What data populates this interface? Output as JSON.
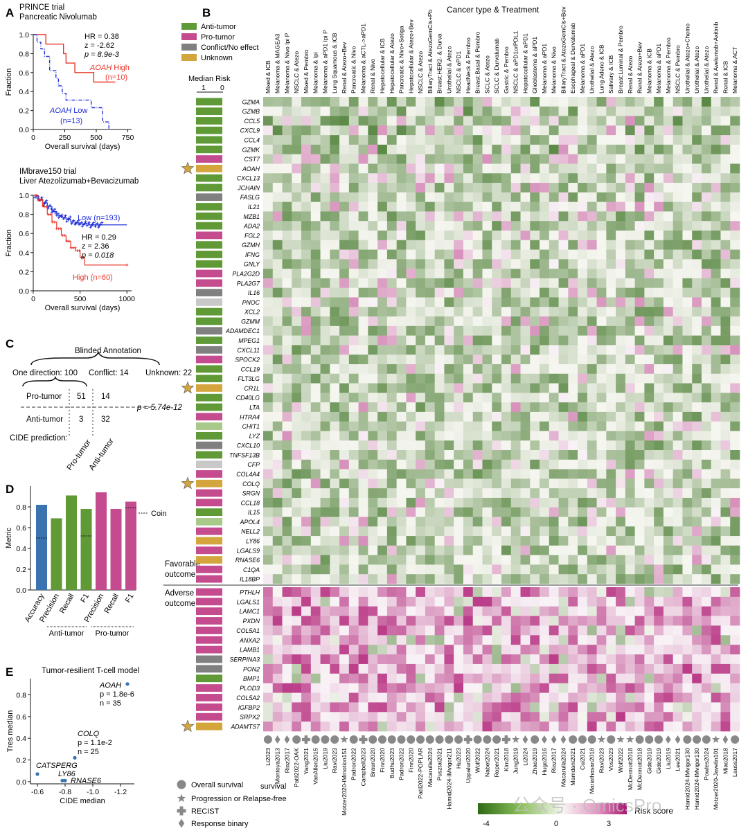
{
  "panels": {
    "A": {
      "letter": "A",
      "km1": {
        "title_line1": "PRINCE trial",
        "title_line2": "Pancreatic Nivolumab",
        "ylabel": "Fraction",
        "xlabel": "Overall survival (days)",
        "xticks": [
          "0",
          "250",
          "500",
          "750"
        ],
        "yticks": [
          "0.0",
          "0.2",
          "0.4",
          "0.6",
          "0.8",
          "1.0"
        ],
        "stats": [
          "HR = 0.38",
          "z = -2.62",
          "p = 8.9e-3"
        ],
        "high_label_gene": "AOAH",
        "high_label_rest": " High",
        "high_n": "(n=10)",
        "low_label_gene": "AOAH",
        "low_label_rest": " Low",
        "low_n": "(n=13)",
        "high_color": "#e8362a",
        "low_color": "#1f2fd6"
      },
      "km2": {
        "title_line1": "IMbrave150 trial",
        "title_line2": "Liver Atezolizumab+Bevacizumab",
        "ylabel": "Fraction",
        "xlabel": "Overall survival (days)",
        "xticks": [
          "0",
          "500",
          "1000"
        ],
        "yticks": [
          "0.0",
          "0.2",
          "0.4",
          "0.6",
          "0.8",
          "1.0"
        ],
        "stats": [
          "HR = 0.29",
          "z = 2.36",
          "p = 0.018"
        ],
        "low_label": "Low (n=193)",
        "high_label": "High (n=60)"
      }
    },
    "C": {
      "letter": "C",
      "title": "Blinded Annotation",
      "one_direction": "One direction: 100",
      "conflict": "Conflict: 14",
      "unknown": "Unknown: 22",
      "row1": "Pro-tumor",
      "row2": "Anti-tumor",
      "cells": [
        "51",
        "14",
        "3",
        "32"
      ],
      "pvalue": "p = 5.74e-12",
      "prediction_label": "CIDE prediction:",
      "col1": "Pro-tumor",
      "col2": "Anti-tumor"
    },
    "D": {
      "letter": "D",
      "ylabel": "Metric",
      "coin_label": "Coin",
      "group1": "Anti-tumor",
      "group2": "Pro-tumor"
    },
    "E": {
      "letter": "E",
      "title": "Tumor-resilient T-cell model",
      "ylabel": "Tres median",
      "xlabel": "CIDE median",
      "xticks": [
        "-0.6",
        "-0.8",
        "-1.0",
        "-1.2"
      ],
      "yticks": [
        "0.0",
        "0.2",
        "0.4",
        "0.6",
        "0.8"
      ],
      "aoah_label": "AOAH",
      "aoah_p": "p = 1.8e-6",
      "aoah_n": "n = 35",
      "colq_label": "COLQ",
      "colq_p": "p = 1.1e-2",
      "colq_n": "n = 25",
      "catsperg_label": "CATSPERG",
      "ly86_label": "LY86",
      "rnase6_label": "RNASE6"
    },
    "B": {
      "letter": "B",
      "top_title": "Cancer type & Treatment",
      "median_risk": "Median Risk",
      "median_ticks": [
        "1",
        "0"
      ],
      "favorable": [
        "Favorable",
        "outcome"
      ],
      "adverse": [
        "Adverse",
        "outcome"
      ],
      "legend_title": "Risk score",
      "legend_ticks": [
        "-4",
        "0",
        "3"
      ],
      "endpoint_legend": [
        {
          "shape": "circle",
          "label": "Overall survival"
        },
        {
          "shape": "star",
          "label": "Progression or Relapse-free"
        },
        {
          "shape": "plus",
          "label": "RECIST"
        },
        {
          "shape": "diamond",
          "label": "Response binary"
        }
      ],
      "endpoint_legend_extra": "survival",
      "watermark": "公众号 · OmicsPro"
    }
  },
  "annotation_legend": [
    {
      "label": "Anti-tumor",
      "color": "#5f9a37"
    },
    {
      "label": "Pro-tumor",
      "color": "#c44b8e"
    },
    {
      "label": "Conflict/No effect",
      "color": "#808080"
    },
    {
      "label": "Unknown",
      "color": "#d4a53c"
    }
  ],
  "chart_data": [
    {
      "type": "line",
      "title": "PRINCE trial Pancreatic Nivolumab",
      "xlabel": "Overall survival (days)",
      "ylabel": "Fraction",
      "xlim": [
        0,
        750
      ],
      "ylim": [
        0,
        1.0
      ],
      "series": [
        {
          "name": "AOAH High (n=10)",
          "x": [
            0,
            40,
            100,
            240,
            260,
            330,
            420,
            480,
            560,
            620,
            650
          ],
          "y": [
            1.0,
            1.0,
            0.9,
            0.8,
            0.7,
            0.6,
            0.6,
            0.5,
            0.5,
            0.5,
            0.5
          ]
        },
        {
          "name": "AOAH Low (n=13)",
          "x": [
            0,
            30,
            60,
            90,
            130,
            180,
            200,
            230,
            260,
            320,
            400,
            460,
            550,
            600
          ],
          "y": [
            1.0,
            0.92,
            0.85,
            0.77,
            0.62,
            0.54,
            0.46,
            0.38,
            0.31,
            0.31,
            0.31,
            0.23,
            0.08,
            0.0
          ]
        }
      ]
    },
    {
      "type": "line",
      "title": "IMbrave150 trial Liver Atezolizumab+Bevacizumab",
      "xlabel": "Overall survival (days)",
      "ylabel": "Fraction",
      "xlim": [
        0,
        1050
      ],
      "ylim": [
        0,
        1.0
      ],
      "series": [
        {
          "name": "Low (n=193)",
          "x": [
            0,
            50,
            100,
            150,
            200,
            250,
            300,
            350,
            400,
            450,
            500,
            600,
            700,
            800,
            900,
            1000
          ],
          "y": [
            1.0,
            0.96,
            0.92,
            0.88,
            0.83,
            0.79,
            0.77,
            0.75,
            0.72,
            0.71,
            0.7,
            0.69,
            0.69,
            0.69,
            0.69,
            0.69
          ]
        },
        {
          "name": "High (n=60)",
          "x": [
            0,
            50,
            100,
            150,
            200,
            250,
            300,
            350,
            400,
            450,
            500,
            550,
            600,
            700,
            800,
            1000
          ],
          "y": [
            1.0,
            0.95,
            0.88,
            0.8,
            0.72,
            0.65,
            0.58,
            0.52,
            0.45,
            0.42,
            0.35,
            0.27,
            0.27,
            0.27,
            0.27,
            0.27
          ]
        }
      ]
    },
    {
      "type": "bar",
      "ylabel": "Metric",
      "ylim": [
        0,
        1.0
      ],
      "categories": [
        "Accuracy",
        "Precision",
        "Recall",
        "F1",
        "Precision",
        "Recall",
        "F1"
      ],
      "values": [
        0.82,
        0.69,
        0.91,
        0.78,
        0.94,
        0.78,
        0.85
      ],
      "coin": [
        0.5,
        null,
        null,
        0.52,
        null,
        null,
        0.79
      ],
      "groups": [
        "",
        "Anti-tumor",
        "Anti-tumor",
        "Anti-tumor",
        "Pro-tumor",
        "Pro-tumor",
        "Pro-tumor"
      ],
      "colors": [
        "#3b72b0",
        "#5f9a37",
        "#5f9a37",
        "#5f9a37",
        "#c44b8e",
        "#c44b8e",
        "#c44b8e"
      ]
    },
    {
      "type": "scatter",
      "title": "Tumor-resilient T-cell model",
      "xlabel": "CIDE median",
      "ylabel": "Tres median",
      "xlim": [
        -0.55,
        -1.3
      ],
      "ylim": [
        -0.02,
        0.95
      ],
      "points": [
        {
          "label": "AOAH",
          "x": -1.25,
          "y": 0.9
        },
        {
          "label": "COLQ",
          "x": -0.87,
          "y": 0.22
        },
        {
          "label": "CATSPERG",
          "x": -0.6,
          "y": 0.07
        },
        {
          "label": "LY86",
          "x": -0.78,
          "y": 0.01
        },
        {
          "label": "RNASE6",
          "x": -0.8,
          "y": 0.01
        }
      ]
    },
    {
      "type": "heatmap",
      "title": "Cancer type & Treatment",
      "colorbar_label": "Risk score",
      "colorbar_range": [
        -4,
        3
      ],
      "columns_top": [
        "Mixed & ICB",
        "Melanoma & MAGEA3",
        "Melanoma & Nivo Ipi P",
        "NSCLC & Atezo",
        "Mixed & Pembro",
        "Melanoma & Ipi",
        "Melanoma & aPD1 Ipi P",
        "Lung Squamous & ICB",
        "Renal & Atezo+Bev",
        "Pancreatic & Nivo",
        "Melanoma & aCTL->aPD1",
        "Renal & Nivo",
        "Hepatocellular & ICB",
        "Hepatocellular & Atezo",
        "Pancreatic & Nivo+Sotiga",
        "Hepatocellular & Atezo+Bev",
        "NSCLC & Atezo",
        "BiliaryTract & AtezoGemCis+Pb",
        "Breast:HER2- & Durva",
        "Urothelial & Atezo",
        "NSCLC & aPD1",
        "HeadNeck & Pembro",
        "Breast:Basal & Pembro",
        "SCLC & Atezo",
        "SCLC & Durvalumab",
        "Gastric & Pembro",
        "NSCLC & aPD1orPDL1",
        "Hepatocellular & aPD1",
        "Glioblastoma & aPD1",
        "Melanoma & aPD1",
        "Melanoma & Nivo",
        "BiliaryTract & AtezoGemCis+Bev",
        "Esophageal & Durvalumab",
        "Melanoma & aPD1",
        "Urothelial & Atezo",
        "Lung Adeno & ICB",
        "Salivary & ICB",
        "Breast:Luminal & Pembro",
        "Renal & Atezo",
        "Renal & Atezo+Bev",
        "Melanoma & ICB",
        "Melanoma & aPD1",
        "Melanoma & Pembro",
        "NSCLC & Pembro",
        "Urothelial & Atezo+Chemo",
        "Urothelial & Atezo",
        "Urothelial & Atezo",
        "Renal & Avelumab+Axitinib",
        "Renal & ICB",
        "Melanoma & ACT"
      ],
      "columns_bottom": [
        "Li2023",
        "Montoya2013",
        "Riaz2017",
        "Patil2022-OAK",
        "Yang2021",
        "VanAllen2015",
        "Liu2019",
        "Ravi2023",
        "Motzer2020-IMmotion151",
        "Padron2022",
        "Campbell2023",
        "Braun2020",
        "Finn2020",
        "Budhu2023",
        "Padron2022",
        "Finn2020",
        "Patil2022-POPLAR",
        "Macarulla2024",
        "Pusztai2021",
        "Hamid2024-IMvigor211",
        "Hu2023",
        "Uppaluri2020",
        "Wolf2022",
        "Nabet2024",
        "Roper2021",
        "Kim2018",
        "Jung2019",
        "Li2024",
        "Zhao2019",
        "Hugo2016",
        "Riaz2017",
        "Macarulla2024",
        "Mamdani2021",
        "Cui2021",
        "Mariathasan2018",
        "Ravi2023",
        "Vos2023",
        "Wolf2022",
        "McDermott2018",
        "McDermott2018",
        "Gide2019",
        "Gide2019",
        "Liu2019",
        "Lee2021",
        "Hamid2024-IMvigor130",
        "Hamid2024-IMvigor130",
        "Powles2024",
        "Motzer2020-Javelin101",
        "Miao2018",
        "Lauss2017"
      ],
      "endpoints": [
        "circle",
        "diamond",
        "diamond",
        "circle",
        "plus",
        "circle",
        "circle",
        "circle",
        "star",
        "circle",
        "plus",
        "circle",
        "circle",
        "circle",
        "circle",
        "circle",
        "circle",
        "circle",
        "circle",
        "circle",
        "circle",
        "plus",
        "circle",
        "circle",
        "circle",
        "plus",
        "star",
        "diamond",
        "circle",
        "diamond",
        "diamond",
        "diamond",
        "circle",
        "circle",
        "circle",
        "star",
        "circle",
        "star",
        "star",
        "circle",
        "circle",
        "circle",
        "diamond",
        "diamond",
        "circle",
        "circle",
        "circle",
        "star",
        "diamond",
        "circle"
      ],
      "rows_favorable": [
        {
          "gene": "GZMA",
          "ann": "Anti-tumor"
        },
        {
          "gene": "GZMB",
          "ann": "Anti-tumor"
        },
        {
          "gene": "CCL5",
          "ann": "Anti-tumor"
        },
        {
          "gene": "CXCL9",
          "ann": "Anti-tumor"
        },
        {
          "gene": "CCL4",
          "ann": "Anti-tumor"
        },
        {
          "gene": "GZMK",
          "ann": "Anti-tumor"
        },
        {
          "gene": "CST7",
          "ann": "Pro-tumor"
        },
        {
          "gene": "AOAH",
          "ann": "Unknown",
          "star": true
        },
        {
          "gene": "CXCL13",
          "ann": "Anti-tumor"
        },
        {
          "gene": "JCHAIN",
          "ann": "Anti-tumor"
        },
        {
          "gene": "FASLG",
          "ann": "Conflict/No effect"
        },
        {
          "gene": "IL21",
          "ann": "Anti-tumor"
        },
        {
          "gene": "MZB1",
          "ann": "Anti-tumor"
        },
        {
          "gene": "ADA2",
          "ann": "Anti-tumor"
        },
        {
          "gene": "FGL2",
          "ann": "Pro-tumor"
        },
        {
          "gene": "GZMH",
          "ann": "Anti-tumor"
        },
        {
          "gene": "IFNG",
          "ann": "Anti-tumor"
        },
        {
          "gene": "GNLY",
          "ann": "Anti-tumor"
        },
        {
          "gene": "PLA2G2D",
          "ann": "Pro-tumor"
        },
        {
          "gene": "PLA2G7",
          "ann": "Pro-tumor"
        },
        {
          "gene": "IL16",
          "ann": "Conflict/No effect"
        },
        {
          "gene": "PNOC",
          "ann": "Light"
        },
        {
          "gene": "XCL2",
          "ann": "Anti-tumor"
        },
        {
          "gene": "GZMM",
          "ann": "Anti-tumor"
        },
        {
          "gene": "ADAMDEC1",
          "ann": "Conflict/No effect"
        },
        {
          "gene": "MPEG1",
          "ann": "Anti-tumor"
        },
        {
          "gene": "CXCL11",
          "ann": "Conflict/No effect"
        },
        {
          "gene": "SPOCK2",
          "ann": "Pro-tumor"
        },
        {
          "gene": "CCL19",
          "ann": "Anti-tumor"
        },
        {
          "gene": "FLT3LG",
          "ann": "Anti-tumor"
        },
        {
          "gene": "CR1L",
          "ann": "Unknown",
          "star": true
        },
        {
          "gene": "CD40LG",
          "ann": "Anti-tumor"
        },
        {
          "gene": "LTA",
          "ann": "Anti-tumor"
        },
        {
          "gene": "HTRA4",
          "ann": "Pro-tumor"
        },
        {
          "gene": "CHIT1",
          "ann": "LightGreen"
        },
        {
          "gene": "LYZ",
          "ann": "Anti-tumor"
        },
        {
          "gene": "CXCL10",
          "ann": "Conflict/No effect"
        },
        {
          "gene": "TNFSF13B",
          "ann": "Anti-tumor"
        },
        {
          "gene": "CFP",
          "ann": "Light"
        },
        {
          "gene": "COL4A4",
          "ann": "Pro-tumor"
        },
        {
          "gene": "COLQ",
          "ann": "Unknown",
          "star": true
        },
        {
          "gene": "SRGN",
          "ann": "Pro-tumor"
        },
        {
          "gene": "CCL18",
          "ann": "Pro-tumor"
        },
        {
          "gene": "IL15",
          "ann": "Anti-tumor"
        },
        {
          "gene": "APOL4",
          "ann": "LightGreen"
        },
        {
          "gene": "NELL2",
          "ann": "Pro-tumor"
        },
        {
          "gene": "LY86",
          "ann": "Unknown"
        },
        {
          "gene": "LGALS9",
          "ann": "Pro-tumor"
        },
        {
          "gene": "RNASE6",
          "ann": "Unknown"
        },
        {
          "gene": "C1QA",
          "ann": "Pro-tumor"
        },
        {
          "gene": "IL18BP",
          "ann": "Pro-tumor"
        }
      ],
      "rows_adverse": [
        {
          "gene": "PTHLH",
          "ann": "Pro-tumor"
        },
        {
          "gene": "LGALS1",
          "ann": "Pro-tumor"
        },
        {
          "gene": "LAMC1",
          "ann": "Pro-tumor"
        },
        {
          "gene": "PXDN",
          "ann": "Pro-tumor"
        },
        {
          "gene": "COL5A1",
          "ann": "Pro-tumor"
        },
        {
          "gene": "ANXA2",
          "ann": "Pro-tumor"
        },
        {
          "gene": "LAMB1",
          "ann": "Pro-tumor"
        },
        {
          "gene": "SERPINA3",
          "ann": "Conflict/No effect"
        },
        {
          "gene": "PON2",
          "ann": "Conflict/No effect"
        },
        {
          "gene": "BMP1",
          "ann": "Anti-tumor"
        },
        {
          "gene": "PLOD3",
          "ann": "Pro-tumor"
        },
        {
          "gene": "COL5A2",
          "ann": "Pro-tumor"
        },
        {
          "gene": "IGFBP2",
          "ann": "Pro-tumor"
        },
        {
          "gene": "SRPX2",
          "ann": "Pro-tumor"
        },
        {
          "gene": "ADAMTS7",
          "ann": "Unknown",
          "star": true
        }
      ]
    }
  ]
}
